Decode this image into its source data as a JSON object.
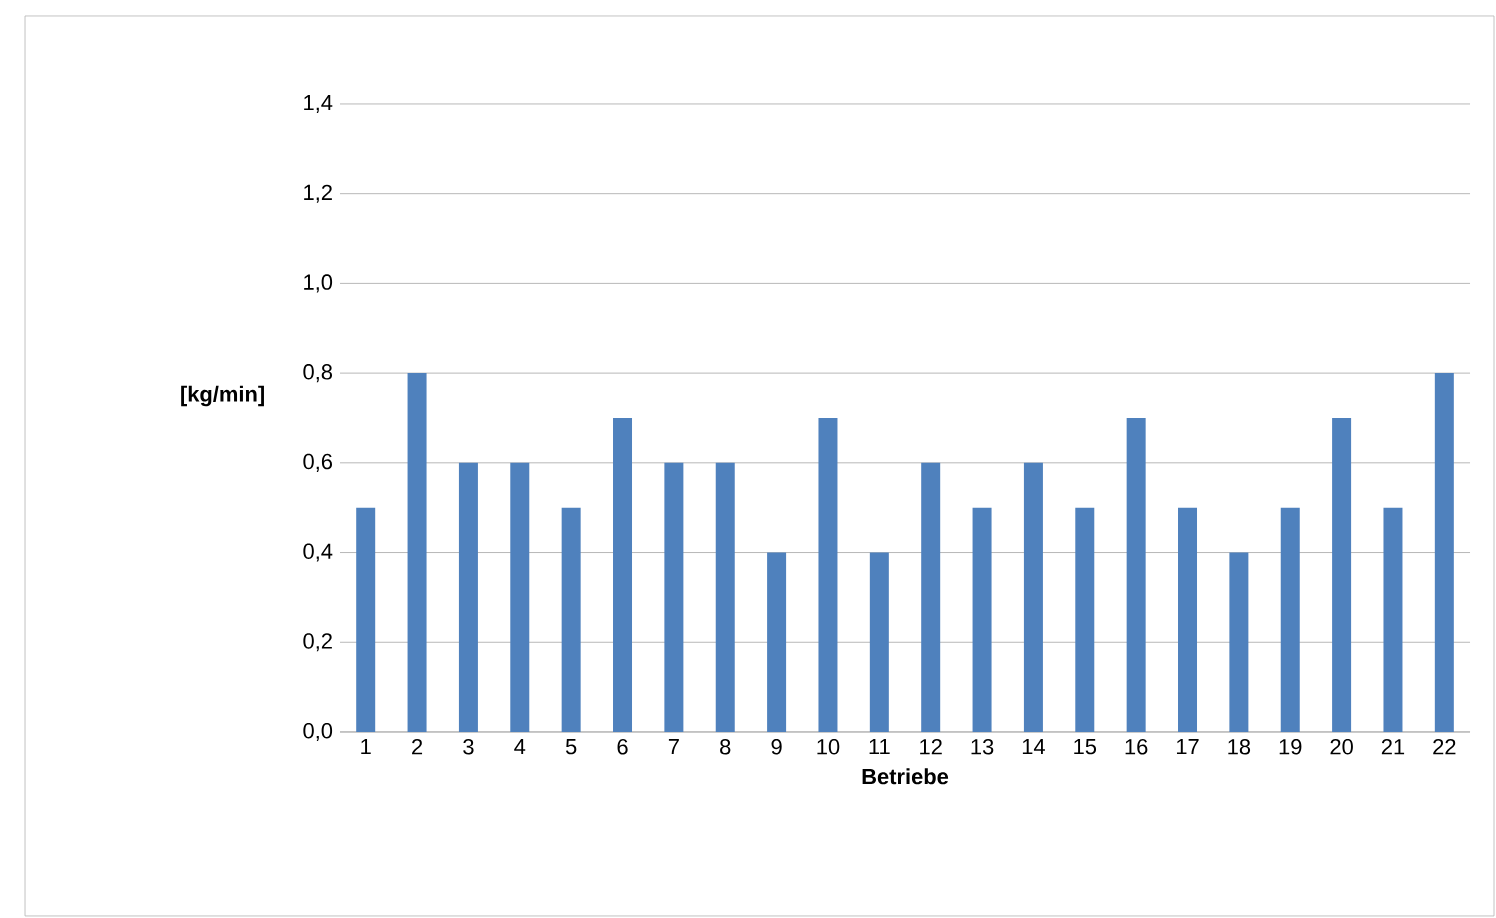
{
  "chart_data": {
    "type": "bar",
    "categories": [
      "1",
      "2",
      "3",
      "4",
      "5",
      "6",
      "7",
      "8",
      "9",
      "10",
      "11",
      "12",
      "13",
      "14",
      "15",
      "16",
      "17",
      "18",
      "19",
      "20",
      "21",
      "22"
    ],
    "values": [
      0.5,
      0.8,
      0.6,
      0.6,
      0.5,
      0.7,
      0.6,
      0.6,
      0.4,
      0.7,
      0.4,
      0.6,
      0.5,
      0.6,
      0.5,
      0.7,
      0.5,
      0.4,
      0.5,
      0.7,
      0.5,
      0.8
    ],
    "color": "#4f81bd",
    "xlabel": "Betriebe",
    "ylabel": "[kg/min]",
    "ylim": [
      0,
      1.4
    ],
    "yticks": [
      {
        "value": 0,
        "label": "0,0"
      },
      {
        "value": 0.2,
        "label": "0,2"
      },
      {
        "value": 0.4,
        "label": "0,4"
      },
      {
        "value": 0.6,
        "label": "0,6"
      },
      {
        "value": 0.8,
        "label": "0,8"
      },
      {
        "value": 1.0,
        "label": "1,0"
      },
      {
        "value": 1.2,
        "label": "1,2"
      },
      {
        "value": 1.4,
        "label": "1,4"
      }
    ],
    "grid": "y"
  }
}
